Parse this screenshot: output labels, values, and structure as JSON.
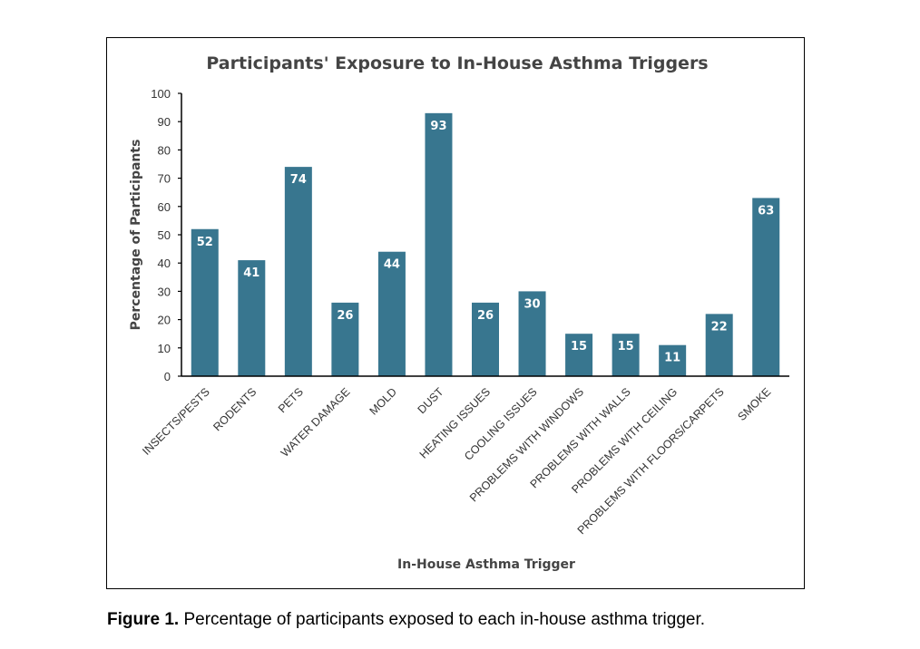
{
  "chart_data": {
    "type": "bar",
    "title": "Participants' Exposure to In-House Asthma Triggers",
    "xlabel": "In-House Asthma Trigger",
    "ylabel": "Percentage of Participants",
    "ylim": [
      0,
      100
    ],
    "yticks": [
      0,
      10,
      20,
      30,
      40,
      50,
      60,
      70,
      80,
      90,
      100
    ],
    "categories": [
      "INSECTS/PESTS",
      "RODENTS",
      "PETS",
      "WATER DAMAGE",
      "MOLD",
      "DUST",
      "HEATING ISSUES",
      "COOLING ISSUES",
      "PROBLEMS WITH WINDOWS",
      "PROBLEMS WITH WALLS",
      "PROBLEMS WITH CEILING",
      "PROBLEMS WITH FLOORS/CARPETS",
      "SMOKE"
    ],
    "values": [
      52,
      41,
      74,
      26,
      44,
      93,
      26,
      30,
      15,
      15,
      11,
      22,
      63
    ],
    "data_labels": true,
    "grid": false,
    "legend": "none",
    "bar_color": "#38768f",
    "label_color": "#ffffff"
  },
  "caption": {
    "label": "Figure 1.",
    "text": " Percentage of participants exposed to each in-house asthma trigger."
  }
}
